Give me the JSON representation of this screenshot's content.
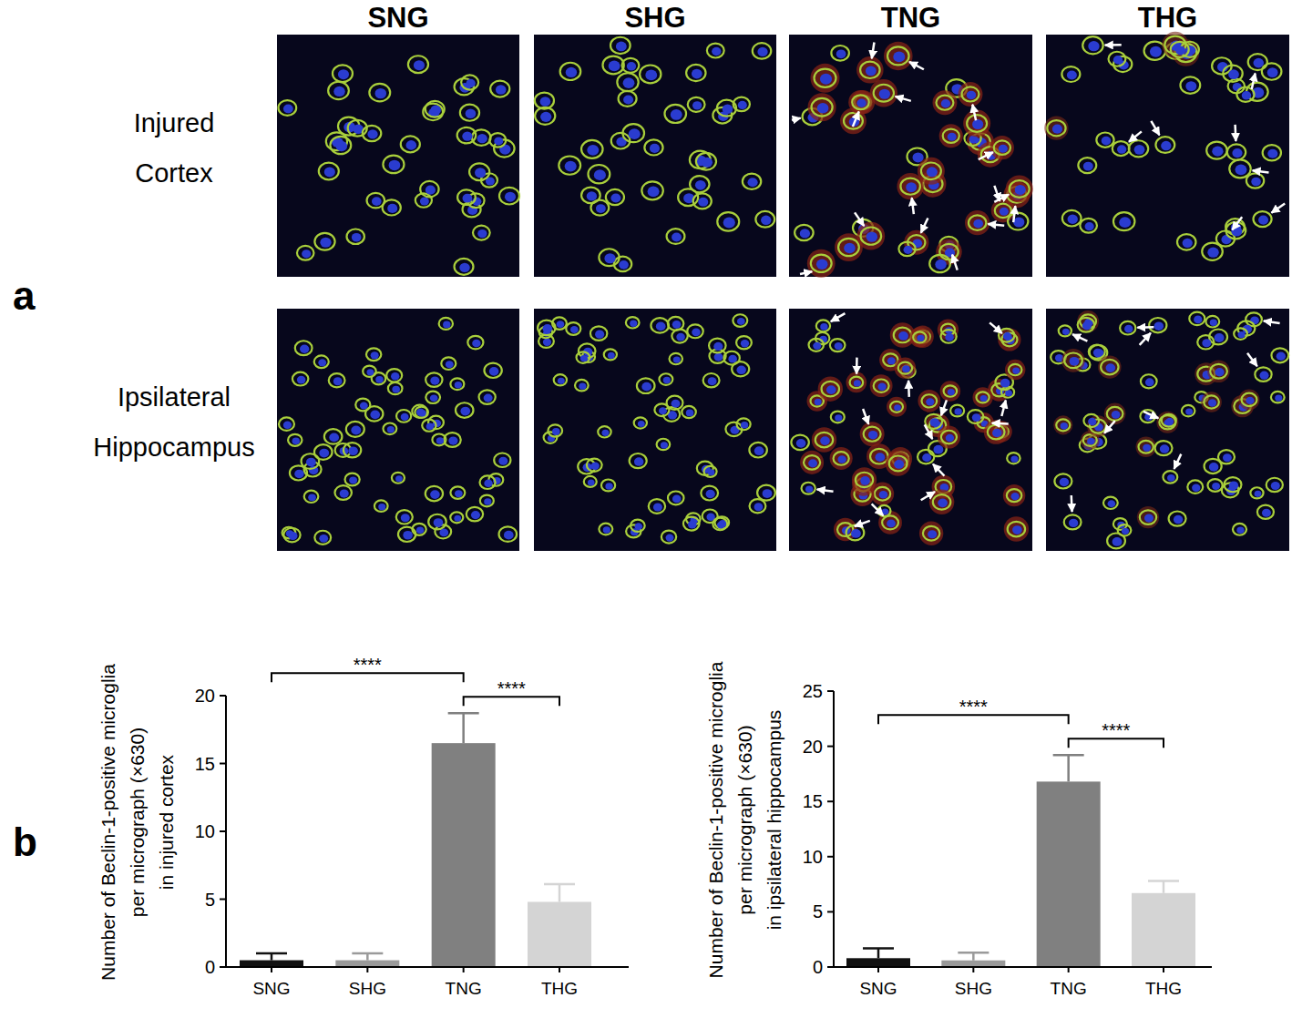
{
  "figure": {
    "panel_labels": [
      "a",
      "b"
    ],
    "columns": [
      "SNG",
      "SHG",
      "TNG",
      "THG"
    ],
    "rows": [
      [
        "Injured",
        "Cortex"
      ],
      [
        "Ipsilateral",
        "Hippocampus"
      ]
    ]
  },
  "chart_data": [
    {
      "type": "bar",
      "y_label": [
        "Number of Beclin-1-positive microglia",
        "per micrograph (×630)",
        "in injured cortex"
      ],
      "categories": [
        "SNG",
        "SHG",
        "TNG",
        "THG"
      ],
      "values": [
        0.5,
        0.5,
        16.5,
        4.8
      ],
      "errors": [
        0.5,
        0.5,
        2.2,
        1.3
      ],
      "colors": [
        "#111111",
        "#9a9a9a",
        "#808080",
        "#d4d4d4"
      ],
      "ylim": [
        0,
        20
      ],
      "yticks": [
        0,
        5,
        10,
        15,
        20
      ],
      "annotations": [
        {
          "text": "****",
          "between": [
            "SNG",
            "TNG"
          ]
        },
        {
          "text": "****",
          "between": [
            "TNG",
            "THG"
          ]
        }
      ]
    },
    {
      "type": "bar",
      "y_label": [
        "Number of Beclin-1-positive microglia",
        "per micrograph (×630)",
        "in ipsilateral hippocampus"
      ],
      "categories": [
        "SNG",
        "SHG",
        "TNG",
        "THG"
      ],
      "values": [
        0.8,
        0.6,
        16.8,
        6.7
      ],
      "errors": [
        0.9,
        0.7,
        2.4,
        1.1
      ],
      "colors": [
        "#111111",
        "#9a9a9a",
        "#808080",
        "#d4d4d4"
      ],
      "ylim": [
        0,
        25
      ],
      "yticks": [
        0,
        5,
        10,
        15,
        20,
        25
      ],
      "annotations": [
        {
          "text": "****",
          "between": [
            "SNG",
            "TNG"
          ]
        },
        {
          "text": "****",
          "between": [
            "TNG",
            "THG"
          ]
        }
      ]
    }
  ]
}
